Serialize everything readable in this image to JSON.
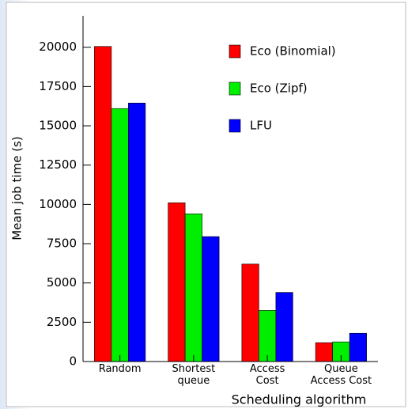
{
  "chart_data": {
    "type": "bar",
    "categories": [
      "Random",
      "Shortest\nqueue",
      "Access\nCost",
      "Queue\nAccess Cost"
    ],
    "series": [
      {
        "name": "Eco (Binomial)",
        "color": "#ff0000",
        "values": [
          20050,
          10100,
          6200,
          1200
        ]
      },
      {
        "name": "Eco (Zipf)",
        "color": "#00ee00",
        "values": [
          16100,
          9400,
          3250,
          1250
        ]
      },
      {
        "name": "LFU",
        "color": "#0000ff",
        "values": [
          16450,
          7950,
          4400,
          1800
        ]
      }
    ],
    "ylabel": "Mean job time (s)",
    "xlabel": "Scheduling algorithm",
    "ylim": [
      0,
      22000
    ],
    "yticks": [
      0,
      2500,
      5000,
      7500,
      10000,
      12500,
      15000,
      17500,
      20000
    ],
    "legend": "top-right"
  }
}
